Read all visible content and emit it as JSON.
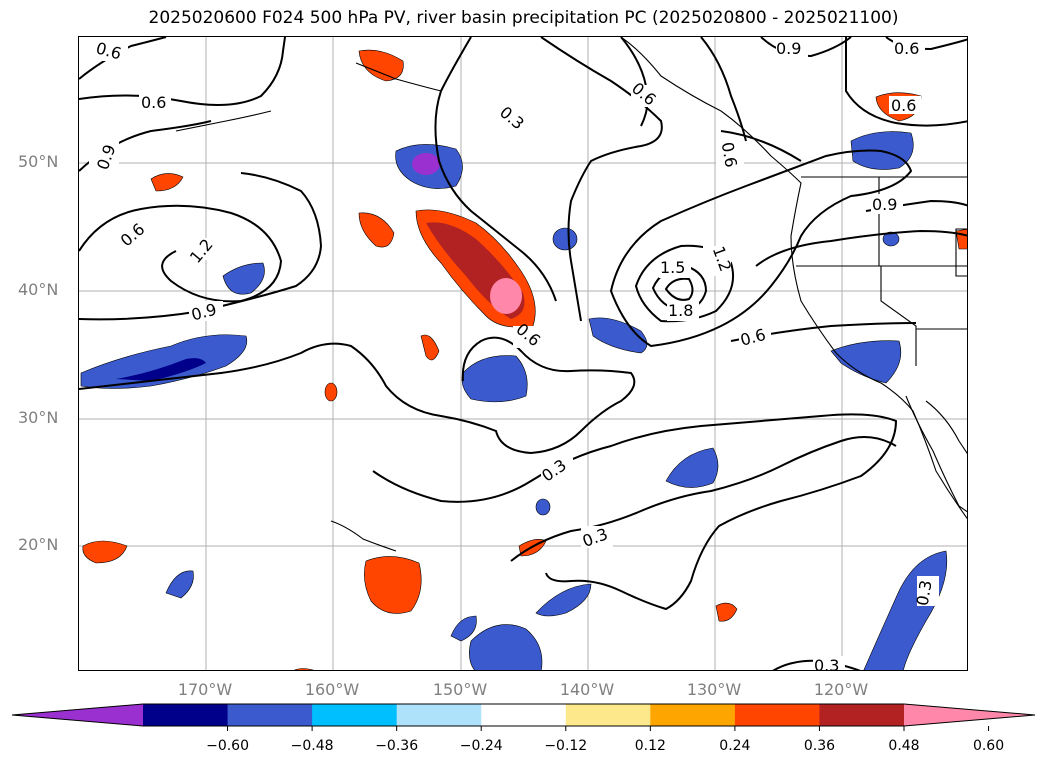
{
  "title": "2025020600 F024 500 hPa PV, river basin precipitation PC (2025020800 - 2025021100)",
  "axes": {
    "lat_labels": [
      "50°N",
      "40°N",
      "30°N",
      "20°N"
    ],
    "lon_labels": [
      "170°W",
      "160°W",
      "150°W",
      "140°W",
      "130°W",
      "120°W"
    ]
  },
  "contour_labels": [
    {
      "id": "c1",
      "text": "0.6"
    },
    {
      "id": "c2",
      "text": "0.6"
    },
    {
      "id": "c3",
      "text": "0.9"
    },
    {
      "id": "c4",
      "text": "0.6"
    },
    {
      "id": "c5",
      "text": "1.2"
    },
    {
      "id": "c6",
      "text": "0.9"
    },
    {
      "id": "c7",
      "text": "0.3"
    },
    {
      "id": "c8",
      "text": "0.6"
    },
    {
      "id": "c9",
      "text": "0.6"
    },
    {
      "id": "c10",
      "text": "0.9"
    },
    {
      "id": "c11",
      "text": "0.6"
    },
    {
      "id": "c12",
      "text": "0.6"
    },
    {
      "id": "c13",
      "text": "0.9"
    },
    {
      "id": "c14",
      "text": "0.6"
    },
    {
      "id": "c15",
      "text": "1.5"
    },
    {
      "id": "c16",
      "text": "1.2"
    },
    {
      "id": "c17",
      "text": "1.8"
    },
    {
      "id": "c18",
      "text": "0.6"
    },
    {
      "id": "c19",
      "text": "0.3"
    },
    {
      "id": "c20",
      "text": "0.3"
    },
    {
      "id": "c21",
      "text": "0.3"
    },
    {
      "id": "c22",
      "text": "0.3"
    }
  ],
  "colorbar": {
    "colors": [
      "#9b30d0",
      "#00008b",
      "#3a5acd",
      "#00bfff",
      "#ade2fa",
      "#ffffff",
      "#fde98b",
      "#ffa500",
      "#ff4500",
      "#b22222",
      "#ff88aa"
    ],
    "tick_labels": [
      "−0.60",
      "−0.48",
      "−0.36",
      "−0.24",
      "−0.12",
      "0.12",
      "0.24",
      "0.36",
      "0.48",
      "0.60"
    ]
  }
}
